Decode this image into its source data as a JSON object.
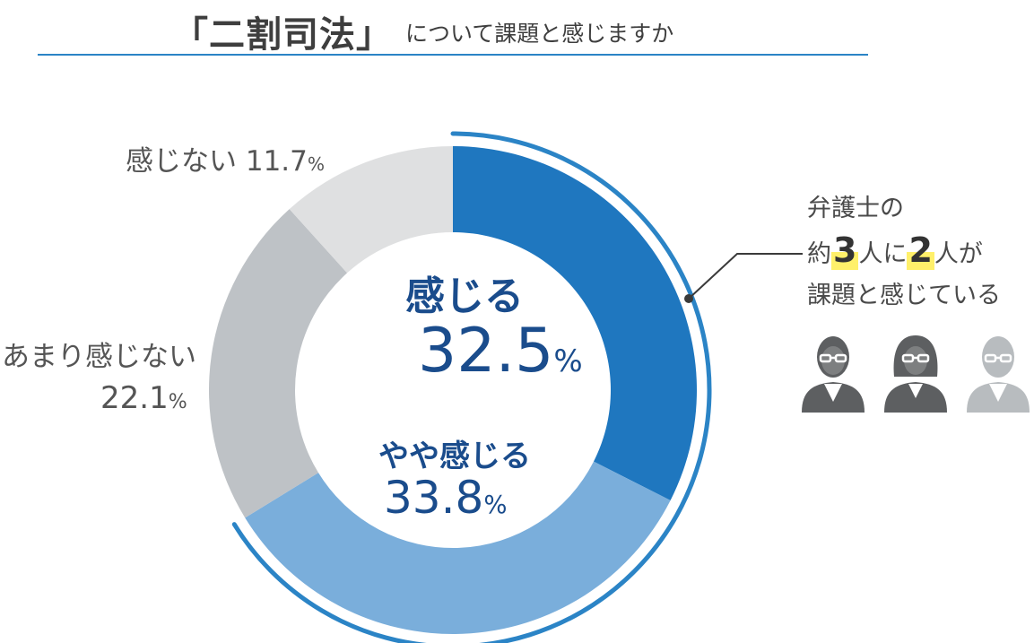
{
  "title": {
    "main": "「二割司法」",
    "sub": "について課題と感じますか"
  },
  "chart_data": {
    "type": "pie",
    "categories": [
      "感じる",
      "やや感じる",
      "あまり感じない",
      "感じない"
    ],
    "values": [
      32.5,
      33.8,
      22.1,
      11.7
    ],
    "unit": "%",
    "value_labels": [
      "32.5",
      "33.8",
      "22.1",
      "11.7"
    ],
    "colors": [
      "#1f77bf",
      "#7aaedb",
      "#bec2c6",
      "#dfe0e1"
    ],
    "style": "donut"
  },
  "callout": {
    "line1": "弁護士の",
    "line2_prefix": "約",
    "line2_num1": "3",
    "line2_mid": "人に",
    "line2_num2": "2",
    "line2_suffix": "人が",
    "line3": "課題と感じている",
    "icons": [
      "man-icon",
      "woman-icon",
      "man-faded-icon"
    ],
    "icon_colors": [
      "#5d5f61",
      "#5d5f61",
      "#b8bcbf"
    ]
  }
}
